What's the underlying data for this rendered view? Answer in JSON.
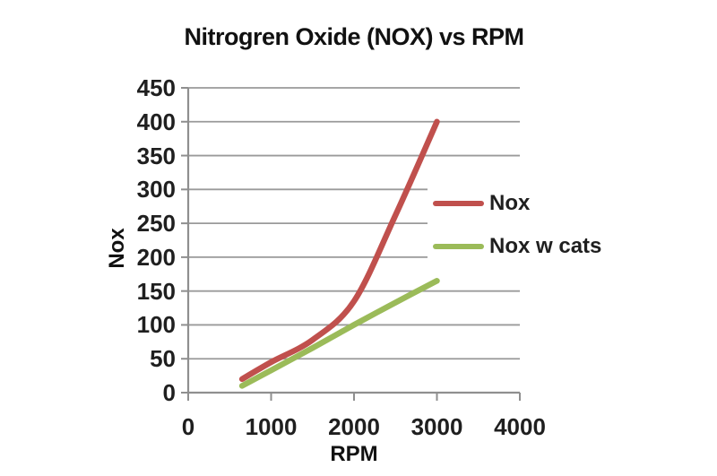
{
  "chart_data": {
    "type": "line",
    "title": "Nitrogren Oxide (NOX) vs RPM",
    "xlabel": "RPM",
    "ylabel": "Nox",
    "xlim": [
      0,
      4000
    ],
    "ylim": [
      0,
      450
    ],
    "x_ticks": [
      0,
      1000,
      2000,
      3000,
      4000
    ],
    "y_ticks": [
      0,
      50,
      100,
      150,
      200,
      250,
      300,
      350,
      400,
      450
    ],
    "grid": "horizontal",
    "legend_position": "middle-right-inside",
    "series": [
      {
        "name": "Nox",
        "color": "#c0504d",
        "x": [
          650,
          1000,
          1500,
          2000,
          2500,
          3000
        ],
        "y": [
          20,
          45,
          78,
          135,
          262,
          400
        ]
      },
      {
        "name": "Nox w cats",
        "color": "#9bbb59",
        "x": [
          650,
          1000,
          1500,
          2000,
          2500,
          3000
        ],
        "y": [
          10,
          33,
          66,
          100,
          133,
          165
        ]
      }
    ],
    "colors": {
      "text": "#1f1f1f",
      "grid": "#9a9a9a",
      "axis": "#8f8f8f",
      "background": "#ffffff"
    }
  }
}
